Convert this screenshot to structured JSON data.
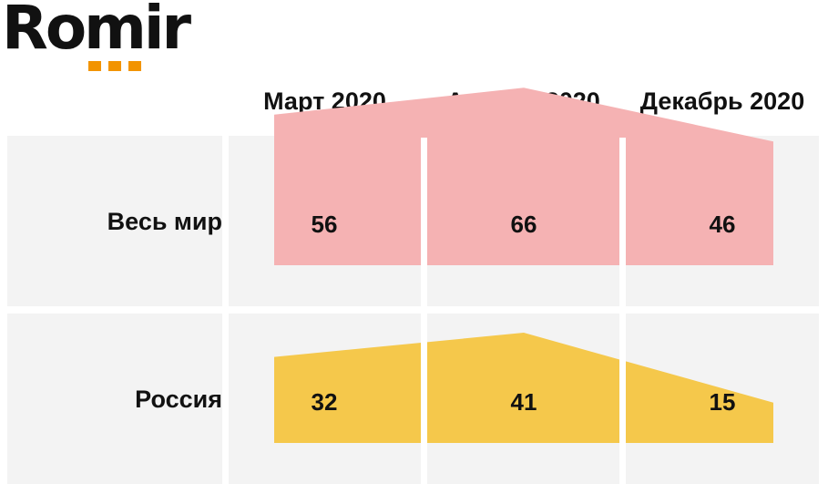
{
  "brand": {
    "name": "Romir",
    "dot_color": "#f29400"
  },
  "chart_data": {
    "type": "area",
    "categories": [
      "Март 2020",
      "Апрель 2020",
      "Декабрь 2020"
    ],
    "series": [
      {
        "name": "Весь мир",
        "values": [
          56,
          66,
          46
        ],
        "color": "#f5b2b3"
      },
      {
        "name": "Россия",
        "values": [
          32,
          41,
          15
        ],
        "color": "#f5c84b"
      }
    ],
    "ylim": [
      0,
      70
    ],
    "grid": false,
    "legend": "none"
  }
}
